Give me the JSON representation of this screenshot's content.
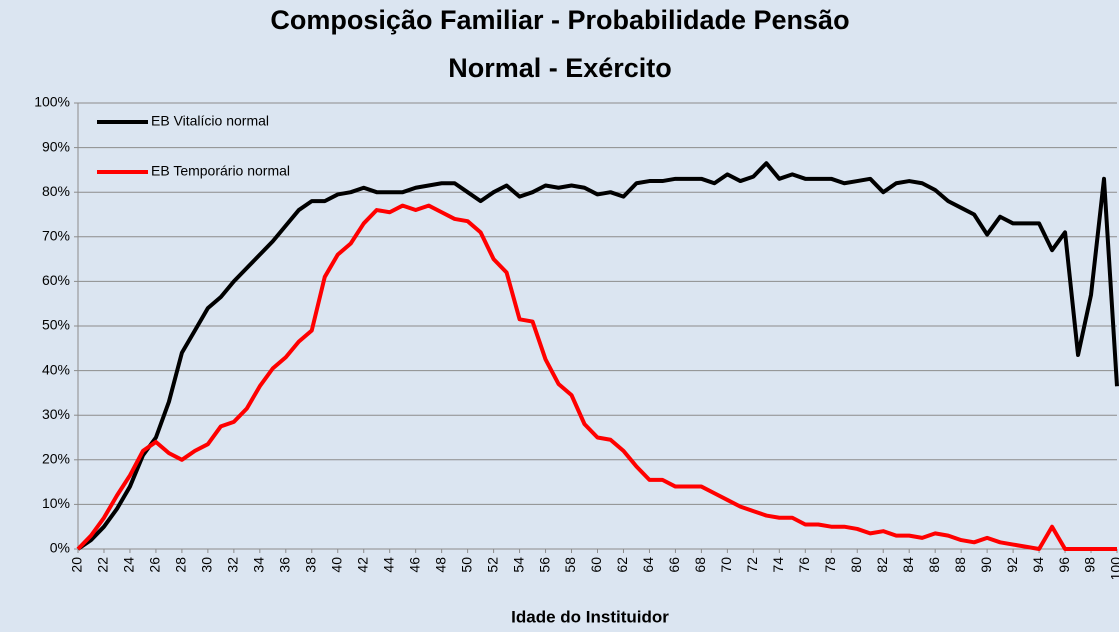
{
  "chart_data": {
    "type": "line",
    "title": [
      "Composição Familiar - Probabilidade Pensão",
      "Normal - Exército"
    ],
    "x_label": "Idade do Instituidor",
    "x": [
      20,
      21,
      22,
      23,
      24,
      25,
      26,
      27,
      28,
      29,
      30,
      31,
      32,
      33,
      34,
      35,
      36,
      37,
      38,
      39,
      40,
      41,
      42,
      43,
      44,
      45,
      46,
      47,
      48,
      49,
      50,
      51,
      52,
      53,
      54,
      55,
      56,
      57,
      58,
      59,
      60,
      61,
      62,
      63,
      64,
      65,
      66,
      67,
      68,
      69,
      70,
      71,
      72,
      73,
      74,
      75,
      76,
      77,
      78,
      79,
      80,
      81,
      82,
      83,
      84,
      85,
      86,
      87,
      88,
      89,
      90,
      91,
      92,
      93,
      94,
      95,
      96,
      97,
      98,
      99,
      100
    ],
    "series": [
      {
        "name": "EB Vitalício normal",
        "color": "#000000",
        "values": [
          0,
          2,
          5,
          9,
          14,
          21,
          25,
          33,
          44,
          49,
          54,
          56.5,
          60,
          63,
          66,
          69,
          72.5,
          76,
          78,
          78,
          79.5,
          80,
          81,
          80,
          80,
          80,
          81,
          81.5,
          82,
          82,
          80,
          78,
          80,
          81.5,
          79,
          80,
          81.5,
          81,
          81.5,
          81,
          79.5,
          80,
          79,
          82,
          82.5,
          82.5,
          83,
          83,
          83,
          82,
          84,
          82.5,
          83.5,
          86.5,
          83,
          84,
          83,
          83,
          83,
          82,
          82.5,
          83,
          80,
          82,
          82.5,
          82,
          80.5,
          78,
          76.5,
          75,
          70.5,
          74.5,
          73,
          73,
          73,
          67,
          71,
          43.5,
          57,
          83,
          36.5
        ]
      },
      {
        "name": "EB Temporário normal",
        "color": "#ff0000",
        "values": [
          0,
          3,
          7,
          12,
          16.5,
          22,
          24,
          21.5,
          20,
          22,
          23.5,
          27.5,
          28.5,
          31.5,
          36.5,
          40.5,
          43,
          46.5,
          49,
          61,
          66,
          68.5,
          73,
          76,
          75.5,
          77,
          76,
          77,
          75.5,
          74,
          73.5,
          71,
          65,
          62,
          51.5,
          51,
          42.5,
          37,
          34.5,
          28,
          25,
          24.5,
          22,
          18.5,
          15.5,
          15.5,
          14,
          14,
          14,
          12.5,
          11,
          9.5,
          8.5,
          7.5,
          7,
          7,
          5.5,
          5.5,
          5,
          5,
          4.5,
          3.5,
          4,
          3,
          3,
          2.5,
          3.5,
          3,
          2,
          1.5,
          2.5,
          1.5,
          1,
          0.5,
          0,
          5,
          0,
          0,
          0,
          0,
          0
        ]
      }
    ],
    "xlim": [
      20,
      100
    ],
    "xticks": [
      20,
      22,
      24,
      26,
      28,
      30,
      32,
      34,
      36,
      38,
      40,
      42,
      44,
      46,
      48,
      50,
      52,
      54,
      56,
      58,
      60,
      62,
      64,
      66,
      68,
      70,
      72,
      74,
      76,
      78,
      80,
      82,
      84,
      86,
      88,
      90,
      92,
      94,
      96,
      98,
      100
    ],
    "ylim": [
      0,
      100
    ],
    "yticks": [
      {
        "value": 0,
        "label": "0%"
      },
      {
        "value": 10,
        "label": "10%"
      },
      {
        "value": 20,
        "label": "20%"
      },
      {
        "value": 30,
        "label": "30%"
      },
      {
        "value": 40,
        "label": "40%"
      },
      {
        "value": 50,
        "label": "50%"
      },
      {
        "value": 60,
        "label": "60%"
      },
      {
        "value": 70,
        "label": "70%"
      },
      {
        "value": 80,
        "label": "80%"
      },
      {
        "value": 90,
        "label": "90%"
      },
      {
        "value": 100,
        "label": "100%"
      }
    ],
    "grid": true,
    "legend": "top-left"
  }
}
